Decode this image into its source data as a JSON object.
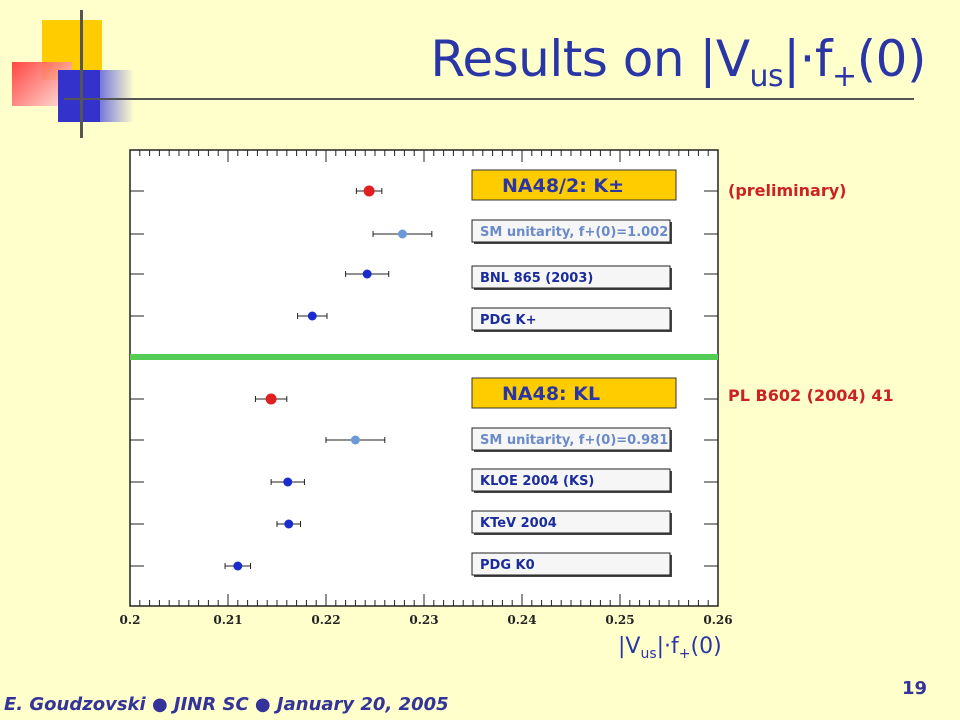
{
  "slide": {
    "title_main": "Results on |V",
    "title_sub": "us",
    "title_tail": "|·f",
    "title_sub2": "+",
    "title_end": "(0)",
    "footer": "E. Goudzovski ● JINR SC ● January 20, 2005",
    "page_number": "19"
  },
  "annotations": {
    "upper_note": "(preliminary)",
    "lower_note": "PL B602 (2004) 41"
  },
  "colors": {
    "background": "#ffffcc",
    "accent_red": "#e02020",
    "point_blue": "#1a2ccc",
    "point_lightblue": "#6a9ad8",
    "divider_green": "#55cc55",
    "highlight_box": "#ffcc00"
  },
  "chart_data": {
    "type": "scatter",
    "xlabel": "|Vus|·f+(0)",
    "xlim": [
      0.2,
      0.26
    ],
    "xticks": [
      "0.2",
      "0.21",
      "0.22",
      "0.23",
      "0.24",
      "0.25",
      "0.26"
    ],
    "groups": [
      {
        "series": [
          {
            "name": "NA48/2: K±",
            "x": 0.2244,
            "err": 0.0013,
            "color": "red",
            "highlight": true
          },
          {
            "name": "SM unitarity, f+(0)=1.002",
            "x": 0.2278,
            "err": 0.003,
            "color": "lightblue"
          },
          {
            "name": "BNL 865 (2003)",
            "x": 0.2242,
            "err": 0.0022,
            "color": "blue"
          },
          {
            "name": "PDG K+",
            "x": 0.2186,
            "err": 0.0015,
            "color": "blue"
          }
        ]
      },
      {
        "series": [
          {
            "name": "NA48: KL",
            "x": 0.2144,
            "err": 0.0016,
            "color": "red",
            "highlight": true
          },
          {
            "name": "SM unitarity, f+(0)=0.981",
            "x": 0.223,
            "err": 0.003,
            "color": "lightblue"
          },
          {
            "name": "KLOE 2004 (KS)",
            "x": 0.2161,
            "err": 0.0017,
            "color": "blue"
          },
          {
            "name": "KTeV 2004",
            "x": 0.2162,
            "err": 0.0012,
            "color": "blue"
          },
          {
            "name": "PDG K0",
            "x": 0.211,
            "err": 0.0013,
            "color": "blue"
          }
        ]
      }
    ]
  }
}
